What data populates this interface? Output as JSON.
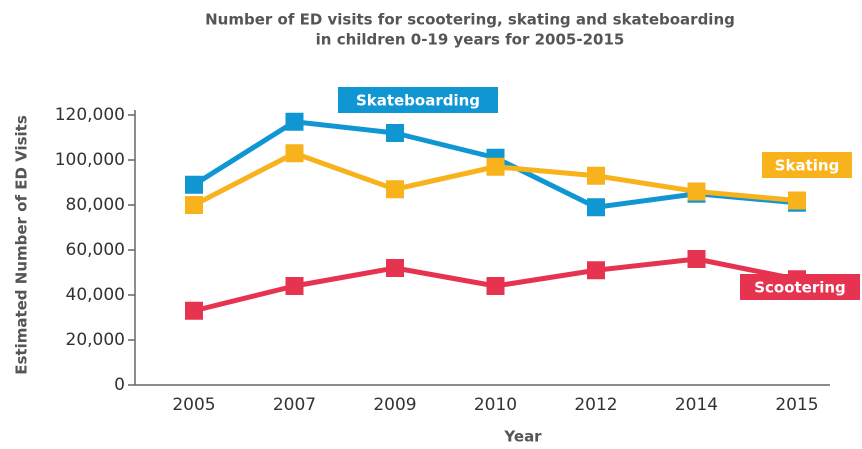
{
  "chart_data": {
    "type": "line",
    "title": [
      "Number of ED visits for scootering, skating and skateboarding",
      "in children 0-19 years for 2005-2015"
    ],
    "x_label": "Year",
    "y_label": "Estimated Number of ED Visits",
    "categories": [
      "2005",
      "2007",
      "2009",
      "2010",
      "2012",
      "2014",
      "2015"
    ],
    "series": [
      {
        "name": "Skateboarding",
        "color": "#1096d2",
        "values": [
          89000,
          117000,
          112000,
          101000,
          79000,
          85000,
          81000
        ]
      },
      {
        "name": "Skating",
        "color": "#f8b21c",
        "values": [
          80000,
          103000,
          87000,
          97000,
          93000,
          86000,
          82000
        ]
      },
      {
        "name": "Scootering",
        "color": "#e6334f",
        "values": [
          33000,
          44000,
          52000,
          44000,
          51000,
          56000,
          47000
        ]
      }
    ],
    "ylim": [
      0,
      120000
    ],
    "yticks": [
      0,
      {
        "value": 20000,
        "label": "20,000"
      },
      {
        "value": 40000,
        "label": "40,000"
      },
      {
        "value": 60000,
        "label": "60,000"
      },
      {
        "value": 80000,
        "label": "80,000"
      },
      {
        "value": 100000,
        "label": "100,000"
      },
      {
        "value": 120000,
        "label": "120,000"
      }
    ]
  }
}
